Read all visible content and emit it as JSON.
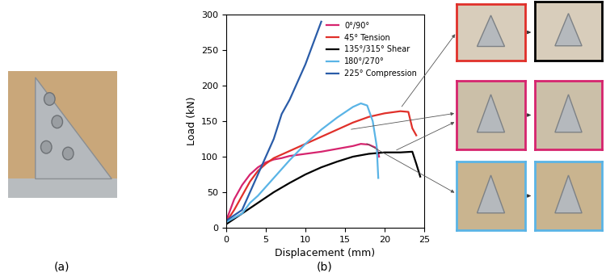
{
  "chart_data": {
    "type": "line",
    "xlabel": "Displacement (mm)",
    "ylabel": "Load (kN)",
    "xlim": [
      0,
      25
    ],
    "xticks": [
      0,
      5,
      10,
      15,
      20,
      25
    ],
    "ylim": [
      0,
      300
    ],
    "yticks": [
      0,
      50,
      100,
      150,
      200,
      250,
      300
    ],
    "grid": false,
    "legend": "upper right",
    "series": [
      {
        "name": "0°/90°",
        "color": "#d6246e",
        "x": [
          0,
          1,
          2,
          3,
          4,
          5,
          6,
          7,
          8,
          10,
          12,
          14,
          16,
          17,
          18,
          19,
          19.3
        ],
        "values": [
          10,
          40,
          60,
          75,
          85,
          92,
          96,
          98,
          101,
          104,
          107,
          111,
          115,
          118,
          117,
          112,
          100
        ]
      },
      {
        "name": "45° Tension",
        "color": "#e0302a",
        "x": [
          0,
          1,
          2,
          3,
          4,
          5,
          6,
          8,
          10,
          12,
          14,
          16,
          18,
          20,
          22,
          23,
          23.5,
          24
        ],
        "values": [
          8,
          25,
          45,
          65,
          80,
          90,
          98,
          108,
          118,
          128,
          138,
          148,
          156,
          161,
          164,
          163,
          140,
          130
        ]
      },
      {
        "name": "135°/315° Shear",
        "color": "#000000",
        "x": [
          0,
          2,
          4,
          6,
          8,
          10,
          12,
          14,
          16,
          18,
          20,
          22,
          23.5,
          24,
          24.5
        ],
        "values": [
          5,
          20,
          35,
          50,
          63,
          75,
          85,
          93,
          100,
          104,
          106,
          106,
          107,
          90,
          72
        ]
      },
      {
        "name": "180°/270°",
        "color": "#5ab4e6",
        "x": [
          0,
          2,
          3,
          4,
          6,
          8,
          10,
          12,
          14,
          16,
          17,
          17.8,
          18.5,
          19,
          19.2
        ],
        "values": [
          8,
          20,
          35,
          45,
          70,
          95,
          118,
          138,
          155,
          170,
          175,
          172,
          150,
          115,
          70
        ]
      },
      {
        "name": "225° Compression",
        "color": "#2a5ca8",
        "x": [
          0,
          2,
          3,
          4,
          5,
          6,
          7,
          8,
          9,
          10,
          11,
          12
        ],
        "values": [
          10,
          25,
          50,
          75,
          100,
          125,
          160,
          180,
          205,
          230,
          260,
          290
        ]
      }
    ]
  },
  "panel_labels": [
    "(a)",
    "(b)"
  ]
}
